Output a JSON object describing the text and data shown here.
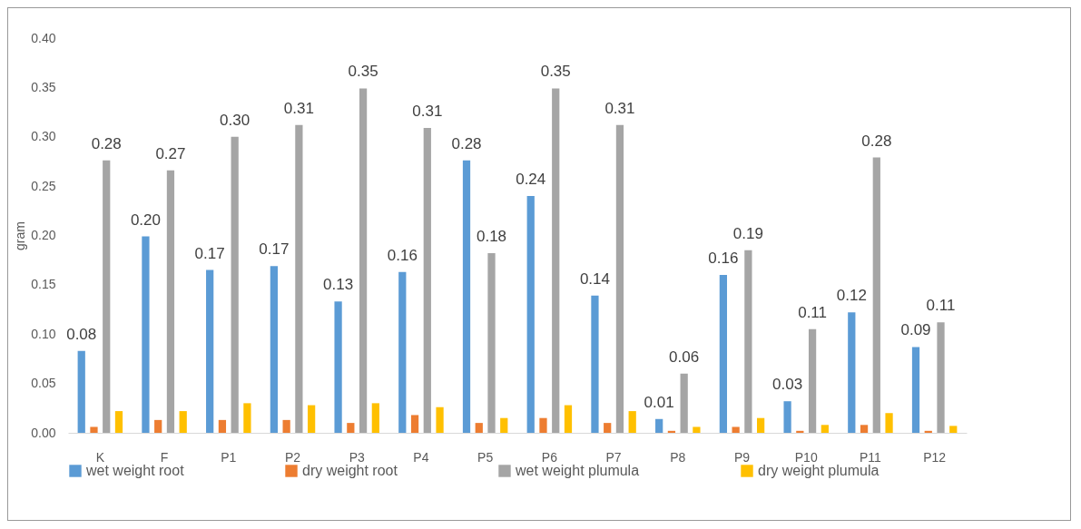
{
  "chart_data": {
    "type": "bar",
    "ylabel": "gram",
    "categories": [
      "K",
      "F",
      "P1",
      "P2",
      "P3",
      "P4",
      "P5",
      "P6",
      "P7",
      "P8",
      "P9",
      "P10",
      "P11",
      "P12"
    ],
    "ylim": [
      0,
      0.4
    ],
    "yticks": [
      {
        "value": 0,
        "label": "0.00"
      },
      {
        "value": 0.05,
        "label": "0.05"
      },
      {
        "value": 0.1,
        "label": "0.10"
      },
      {
        "value": 0.15,
        "label": "0.15"
      },
      {
        "value": 0.2,
        "label": "0.20"
      },
      {
        "value": 0.25,
        "label": "0.25"
      },
      {
        "value": 0.3,
        "label": "0.30"
      },
      {
        "value": 0.35,
        "label": "0.35"
      },
      {
        "value": 0.4,
        "label": "0.40"
      }
    ],
    "grid": false,
    "legend": "bottom",
    "series": [
      {
        "name": "wet weight root",
        "color": "#5b9bd5",
        "values": [
          0.083,
          0.199,
          0.165,
          0.169,
          0.133,
          0.163,
          0.276,
          0.24,
          0.139,
          0.014,
          0.16,
          0.032,
          0.122,
          0.087
        ],
        "value_labels": [
          "0.08",
          "0.20",
          "0.17",
          "0.17",
          "0.13",
          "0.16",
          "0.28",
          "0.24",
          "0.14",
          "0.01",
          "0.16",
          "0.03",
          "0.12",
          "0.09"
        ]
      },
      {
        "name": "dry weight root",
        "color": "#ed7d31",
        "values": [
          0.006,
          0.013,
          0.013,
          0.013,
          0.01,
          0.018,
          0.01,
          0.015,
          0.01,
          0.002,
          0.006,
          0.002,
          0.008,
          0.002
        ]
      },
      {
        "name": "wet weight plumula",
        "color": "#a5a5a5",
        "values": [
          0.276,
          0.266,
          0.3,
          0.312,
          0.349,
          0.309,
          0.182,
          0.349,
          0.312,
          0.06,
          0.185,
          0.105,
          0.279,
          0.112
        ],
        "value_labels": [
          "0.28",
          "0.27",
          "0.30",
          "0.31",
          "0.35",
          "0.31",
          "0.18",
          "0.35",
          "0.31",
          "0.06",
          "0.19",
          "0.11",
          "0.28",
          "0.11"
        ]
      },
      {
        "name": "dry weight plumula",
        "color": "#ffc000",
        "values": [
          0.022,
          0.022,
          0.03,
          0.028,
          0.03,
          0.026,
          0.015,
          0.028,
          0.022,
          0.006,
          0.015,
          0.008,
          0.02,
          0.007
        ]
      }
    ]
  }
}
